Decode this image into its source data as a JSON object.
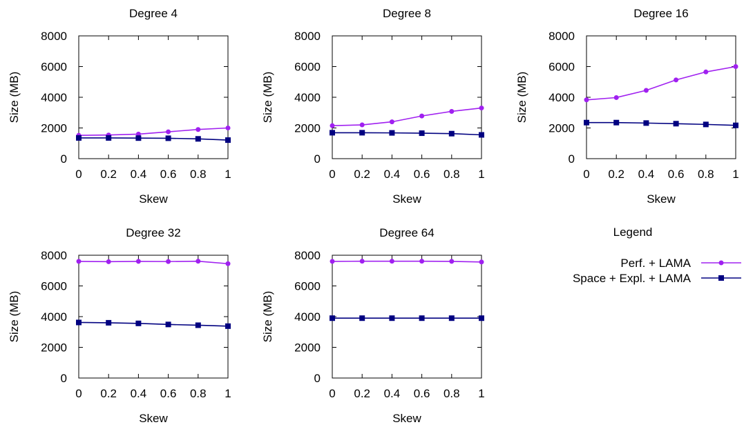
{
  "colors": {
    "perf": "#a020f0",
    "space": "#000080",
    "axis": "#000000",
    "background": "#ffffff"
  },
  "legend": {
    "title": "Legend",
    "placement": "right of bottom row",
    "entries": [
      {
        "series": "perf",
        "label": "Perf. + LAMA",
        "color": "#a020f0",
        "marker": "circle"
      },
      {
        "series": "space",
        "label": "Space + Expl. + LAMA",
        "color": "#000080",
        "marker": "square"
      }
    ]
  },
  "chart_data": [
    {
      "type": "line",
      "title": "Degree 4",
      "xlabel": "Skew",
      "ylabel": "Size (MB)",
      "xlim": [
        0,
        1
      ],
      "ylim": [
        0,
        8000
      ],
      "xticks": [
        "0",
        "0.2",
        "0.4",
        "0.6",
        "0.8",
        "1"
      ],
      "yticks": [
        "0",
        "2000",
        "4000",
        "6000",
        "8000"
      ],
      "grid": false,
      "x": [
        0,
        0.2,
        0.4,
        0.6,
        0.8,
        1
      ],
      "series": [
        {
          "name": "Perf. + LAMA",
          "values": [
            1520,
            1540,
            1600,
            1750,
            1900,
            2000
          ]
        },
        {
          "name": "Space + Expl. + LAMA",
          "values": [
            1350,
            1350,
            1340,
            1330,
            1290,
            1210
          ]
        }
      ]
    },
    {
      "type": "line",
      "title": "Degree 8",
      "xlabel": "Skew",
      "ylabel": "Size (MB)",
      "xlim": [
        0,
        1
      ],
      "ylim": [
        0,
        8000
      ],
      "xticks": [
        "0",
        "0.2",
        "0.4",
        "0.6",
        "0.8",
        "1"
      ],
      "yticks": [
        "0",
        "2000",
        "4000",
        "6000",
        "8000"
      ],
      "grid": false,
      "x": [
        0,
        0.2,
        0.4,
        0.6,
        0.8,
        1
      ],
      "series": [
        {
          "name": "Perf. + LAMA",
          "values": [
            2150,
            2200,
            2400,
            2780,
            3080,
            3300
          ]
        },
        {
          "name": "Space + Expl. + LAMA",
          "values": [
            1690,
            1690,
            1680,
            1660,
            1630,
            1550
          ]
        }
      ]
    },
    {
      "type": "line",
      "title": "Degree 16",
      "xlabel": "Skew",
      "ylabel": "Size (MB)",
      "xlim": [
        0,
        1
      ],
      "ylim": [
        0,
        8000
      ],
      "xticks": [
        "0",
        "0.2",
        "0.4",
        "0.6",
        "0.8",
        "1"
      ],
      "yticks": [
        "0",
        "2000",
        "4000",
        "6000",
        "8000"
      ],
      "grid": false,
      "x": [
        0,
        0.2,
        0.4,
        0.6,
        0.8,
        1
      ],
      "series": [
        {
          "name": "Perf. + LAMA",
          "values": [
            3830,
            3980,
            4450,
            5130,
            5650,
            6000
          ]
        },
        {
          "name": "Space + Expl. + LAMA",
          "values": [
            2350,
            2350,
            2320,
            2280,
            2230,
            2170
          ]
        }
      ]
    },
    {
      "type": "line",
      "title": "Degree 32",
      "xlabel": "Skew",
      "ylabel": "Size (MB)",
      "xlim": [
        0,
        1
      ],
      "ylim": [
        0,
        8000
      ],
      "xticks": [
        "0",
        "0.2",
        "0.4",
        "0.6",
        "0.8",
        "1"
      ],
      "yticks": [
        "0",
        "2000",
        "4000",
        "6000",
        "8000"
      ],
      "grid": false,
      "x": [
        0,
        0.2,
        0.4,
        0.6,
        0.8,
        1
      ],
      "series": [
        {
          "name": "Perf. + LAMA",
          "values": [
            7600,
            7580,
            7600,
            7590,
            7610,
            7450
          ]
        },
        {
          "name": "Space + Expl. + LAMA",
          "values": [
            3620,
            3600,
            3560,
            3490,
            3440,
            3380
          ]
        }
      ]
    },
    {
      "type": "line",
      "title": "Degree 64",
      "xlabel": "Skew",
      "ylabel": "Size (MB)",
      "xlim": [
        0,
        1
      ],
      "ylim": [
        0,
        8000
      ],
      "xticks": [
        "0",
        "0.2",
        "0.4",
        "0.6",
        "0.8",
        "1"
      ],
      "yticks": [
        "0",
        "2000",
        "4000",
        "6000",
        "8000"
      ],
      "grid": false,
      "x": [
        0,
        0.2,
        0.4,
        0.6,
        0.8,
        1
      ],
      "series": [
        {
          "name": "Perf. + LAMA",
          "values": [
            7600,
            7610,
            7610,
            7610,
            7600,
            7560
          ]
        },
        {
          "name": "Space + Expl. + LAMA",
          "values": [
            3900,
            3900,
            3900,
            3900,
            3900,
            3900
          ]
        }
      ]
    }
  ]
}
